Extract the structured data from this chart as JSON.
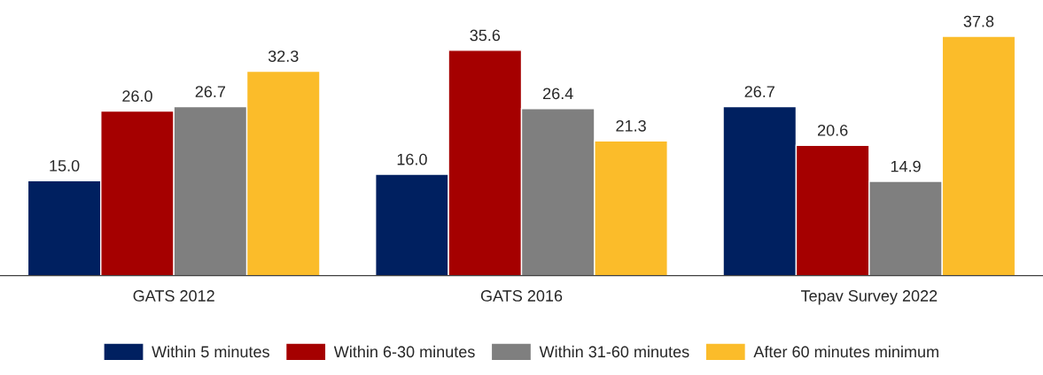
{
  "chart_data": {
    "type": "bar",
    "categories": [
      "GATS 2012",
      "GATS 2016",
      "Tepav Survey 2022"
    ],
    "series": [
      {
        "name": "Within 5 minutes",
        "color": "#002060",
        "values": [
          15.0,
          16.0,
          26.7
        ],
        "value_labels": [
          "15.0",
          "16.0",
          "26.7"
        ]
      },
      {
        "name": "Within 6-30 minutes",
        "color": "#a50000",
        "values": [
          26.0,
          35.6,
          20.6
        ],
        "value_labels": [
          "26.0",
          "35.6",
          "20.6"
        ]
      },
      {
        "name": "Within 31-60 minutes",
        "color": "#7f7f7f",
        "values": [
          26.7,
          26.4,
          14.9
        ],
        "value_labels": [
          "26.7",
          "26.4",
          "14.9"
        ]
      },
      {
        "name": "After 60 minutes minimum",
        "color": "#fbbc2a",
        "values": [
          32.3,
          21.3,
          37.8
        ],
        "value_labels": [
          "32.3",
          "21.3",
          "37.8"
        ]
      }
    ],
    "grid": false,
    "legend": "bottom",
    "tick_labels": "x"
  }
}
